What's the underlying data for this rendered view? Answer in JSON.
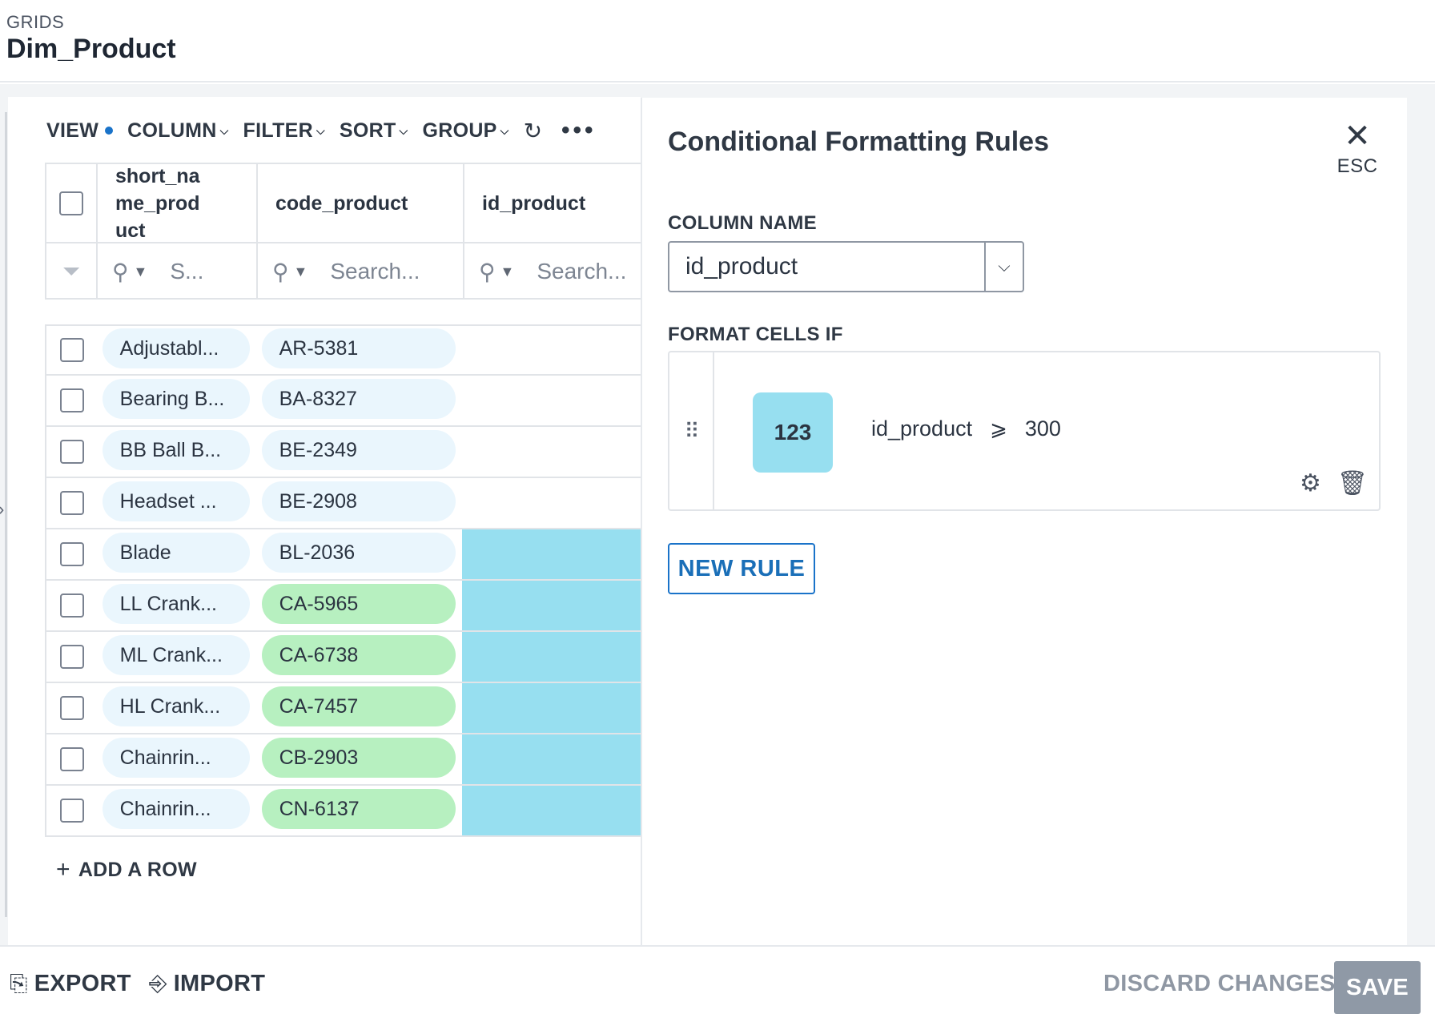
{
  "header": {
    "section_label": "GRIDS",
    "title": "Dim_Product"
  },
  "toolbar": {
    "view": "VIEW",
    "column": "COLUMN",
    "filter": "FILTER",
    "sort": "SORT",
    "group": "GROUP"
  },
  "table": {
    "columns": [
      {
        "key": "short_name_product",
        "label": "short_na\nme_prod\nuct"
      },
      {
        "key": "code_product",
        "label": "code_product"
      },
      {
        "key": "id_product",
        "label": "id_product"
      }
    ],
    "search_placeholders": [
      "S...",
      "Search...",
      "Search..."
    ],
    "rows": [
      {
        "name": "Adjustabl...",
        "code": "AR-5381"
      },
      {
        "name": "Bearing B...",
        "code": "BA-8327"
      },
      {
        "name": "BB Ball B...",
        "code": "BE-2349"
      },
      {
        "name": "Headset ...",
        "code": "BE-2908"
      },
      {
        "name": "Blade",
        "code": "BL-2036"
      },
      {
        "name": "LL Crank...",
        "code": "CA-5965"
      },
      {
        "name": "ML Crank...",
        "code": "CA-6738"
      },
      {
        "name": "HL Crank...",
        "code": "CA-7457"
      },
      {
        "name": "Chainrin...",
        "code": "CB-2903"
      },
      {
        "name": "Chainrin...",
        "code": "CN-6137"
      }
    ],
    "add_row": "ADD A ROW"
  },
  "panel": {
    "title": "Conditional Formatting Rules",
    "close_label": "ESC",
    "column_name_label": "COLUMN NAME",
    "column_name_value": "id_product",
    "format_cells_if_label": "FORMAT CELLS IF",
    "rule": {
      "type_badge": "123",
      "field": "id_product",
      "operator": "⩾",
      "value": "300"
    },
    "new_rule": "NEW RULE"
  },
  "footer": {
    "export": "EXPORT",
    "import": "IMPORT",
    "discard": "DISCARD CHANGES",
    "save": "SAVE"
  },
  "colors": {
    "accent": "#1a73c9",
    "highlight_cyan": "#97dff0",
    "highlight_green": "#b7f0c0",
    "pill_blue": "#eaf6fd"
  }
}
